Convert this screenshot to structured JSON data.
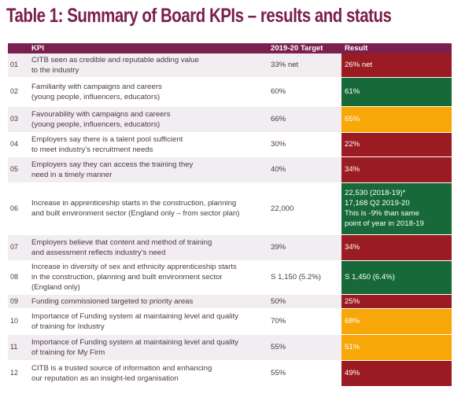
{
  "title": "Table 1: Summary of Board KPIs – results and status",
  "headers": {
    "num": "",
    "kpi": "KPI",
    "target": "2019-20 Target",
    "result": "Result"
  },
  "status_colors": {
    "red": "#9b1b22",
    "green": "#17693a",
    "amber": "#f7a707",
    "header": "#7a1f4e"
  },
  "rows": [
    {
      "num": "01",
      "kpi": [
        "CITB seen as credible and reputable adding value",
        "to the industry"
      ],
      "target": "33% net",
      "result": [
        "26% net"
      ],
      "status": "red"
    },
    {
      "num": "02",
      "kpi": [
        "Familiarity with campaigns and careers",
        "(young people, influencers, educators)"
      ],
      "target": "60%",
      "result": [
        "61%"
      ],
      "status": "green"
    },
    {
      "num": "03",
      "kpi": [
        "Favourability with campaigns and careers",
        "(young people, influencers, educators)"
      ],
      "target": "66%",
      "result": [
        "65%"
      ],
      "status": "amber"
    },
    {
      "num": "04",
      "kpi": [
        "Employers say there is a talent pool sufficient",
        "to meet industry’s recruitment needs"
      ],
      "target": "30%",
      "result": [
        "22%"
      ],
      "status": "red"
    },
    {
      "num": "05",
      "kpi": [
        "Employers say they can access the training they",
        "need in a timely manner"
      ],
      "target": "40%",
      "result": [
        "34%"
      ],
      "status": "red"
    },
    {
      "num": "06",
      "kpi": [
        "Increase in apprenticeship starts in the construction, planning",
        "and built environment sector (England only – from sector plan)"
      ],
      "target": "22,000",
      "result": [
        "22,530 (2018-19)*",
        "17,168 Q2 2019-20",
        "This is -9% than same",
        "point of year in 2018-19"
      ],
      "status": "green"
    },
    {
      "num": "07",
      "kpi": [
        "Employers believe that content and method of training",
        "and assessment reflects industry’s need"
      ],
      "target": "39%",
      "result": [
        "34%"
      ],
      "status": "red"
    },
    {
      "num": "08",
      "kpi": [
        "Increase in diversity of sex and ethnicity apprenticeship starts",
        "in the construction, planning and built environment sector",
        "(England only)"
      ],
      "target": "S 1,150 (5.2%)",
      "result": [
        "S 1,450 (6.4%)"
      ],
      "status": "green"
    },
    {
      "num": "09",
      "kpi": [
        "Funding commissioned targeted to priority areas"
      ],
      "target": "50%",
      "result": [
        "25%"
      ],
      "status": "red"
    },
    {
      "num": "10",
      "kpi": [
        "Importance of Funding system at maintaining level and quality",
        "of training for Industry"
      ],
      "target": "70%",
      "result": [
        "68%"
      ],
      "status": "amber"
    },
    {
      "num": "11",
      "kpi": [
        "Importance of Funding system at maintaining level and quality",
        "of training for My Firm"
      ],
      "target": "55%",
      "result": [
        "51%"
      ],
      "status": "amber"
    },
    {
      "num": "12",
      "kpi": [
        "CITB is a trusted source of information and enhancing",
        "our reputation as an insight-led organisation"
      ],
      "target": "55%",
      "result": [
        "49%"
      ],
      "status": "red"
    }
  ]
}
